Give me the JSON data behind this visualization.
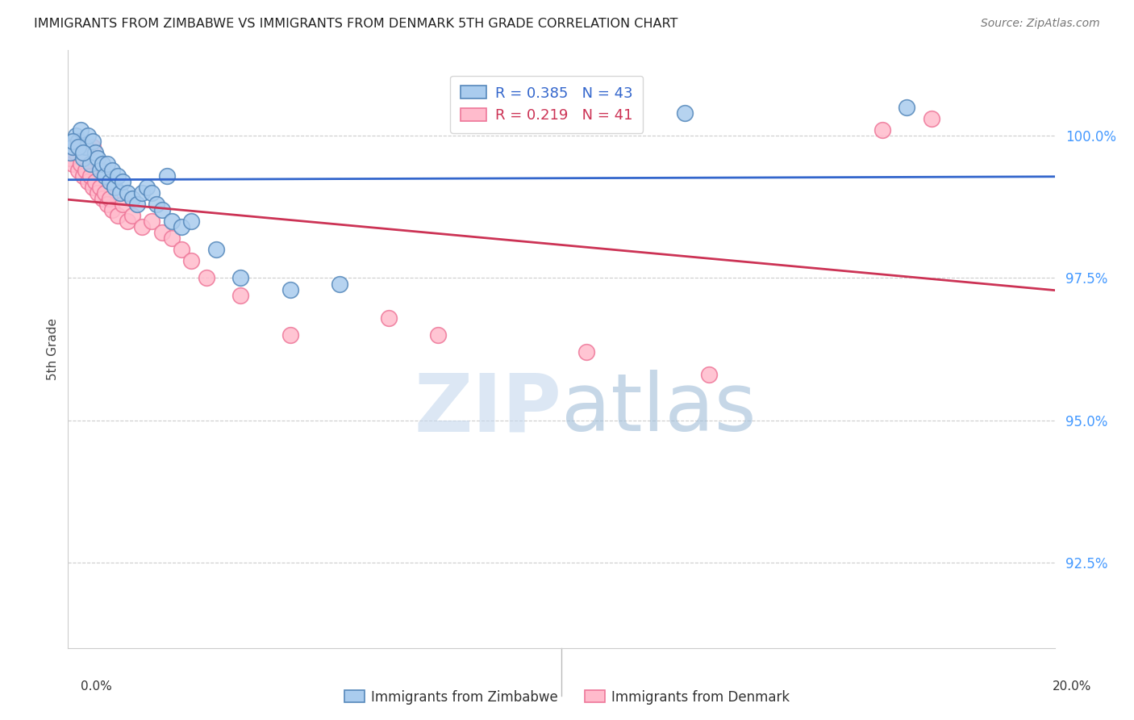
{
  "title": "IMMIGRANTS FROM ZIMBABWE VS IMMIGRANTS FROM DENMARK 5TH GRADE CORRELATION CHART",
  "source": "Source: ZipAtlas.com",
  "ylabel": "5th Grade",
  "yticks": [
    92.5,
    95.0,
    97.5,
    100.0
  ],
  "ytick_labels": [
    "92.5%",
    "95.0%",
    "97.5%",
    "100.0%"
  ],
  "xlim": [
    0.0,
    20.0
  ],
  "ylim": [
    91.0,
    101.5
  ],
  "zimbabwe_color_face": "#AACCEE",
  "zimbabwe_color_edge": "#5588BB",
  "denmark_color_face": "#FFBBCC",
  "denmark_color_edge": "#EE7799",
  "zimbabwe_line_color": "#3366CC",
  "denmark_line_color": "#CC3355",
  "zimbabwe_R": 0.385,
  "zimbabwe_N": 43,
  "denmark_R": 0.219,
  "denmark_N": 41,
  "watermark_zip_color": "#C5D8EE",
  "watermark_atlas_color": "#A0BDD8",
  "zimbabwe_x": [
    0.05,
    0.1,
    0.15,
    0.2,
    0.25,
    0.3,
    0.35,
    0.4,
    0.45,
    0.5,
    0.55,
    0.6,
    0.65,
    0.7,
    0.75,
    0.8,
    0.85,
    0.9,
    0.95,
    1.0,
    1.05,
    1.1,
    1.2,
    1.3,
    1.4,
    1.5,
    1.6,
    1.7,
    1.8,
    1.9,
    2.0,
    2.1,
    2.3,
    2.5,
    3.0,
    3.5,
    4.5,
    5.5,
    0.1,
    0.2,
    0.3,
    12.5,
    17.0
  ],
  "zimbabwe_y": [
    99.7,
    99.8,
    100.0,
    99.9,
    100.1,
    99.6,
    99.8,
    100.0,
    99.5,
    99.9,
    99.7,
    99.6,
    99.4,
    99.5,
    99.3,
    99.5,
    99.2,
    99.4,
    99.1,
    99.3,
    99.0,
    99.2,
    99.0,
    98.9,
    98.8,
    99.0,
    99.1,
    99.0,
    98.8,
    98.7,
    99.3,
    98.5,
    98.4,
    98.5,
    98.0,
    97.5,
    97.3,
    97.4,
    99.9,
    99.8,
    99.7,
    100.4,
    100.5
  ],
  "denmark_x": [
    0.05,
    0.1,
    0.15,
    0.2,
    0.25,
    0.3,
    0.35,
    0.4,
    0.45,
    0.5,
    0.55,
    0.6,
    0.65,
    0.7,
    0.75,
    0.8,
    0.85,
    0.9,
    1.0,
    1.1,
    1.2,
    1.3,
    1.5,
    1.7,
    1.9,
    2.1,
    2.3,
    2.5,
    2.8,
    3.5,
    0.1,
    0.2,
    0.3,
    0.5,
    4.5,
    6.5,
    7.5,
    10.5,
    13.0,
    16.5,
    17.5
  ],
  "denmark_y": [
    99.6,
    99.5,
    99.7,
    99.4,
    99.5,
    99.3,
    99.4,
    99.2,
    99.3,
    99.1,
    99.2,
    99.0,
    99.1,
    98.9,
    99.0,
    98.8,
    98.9,
    98.7,
    98.6,
    98.8,
    98.5,
    98.6,
    98.4,
    98.5,
    98.3,
    98.2,
    98.0,
    97.8,
    97.5,
    97.2,
    99.8,
    99.9,
    99.7,
    99.8,
    96.5,
    96.8,
    96.5,
    96.2,
    95.8,
    100.1,
    100.3
  ]
}
